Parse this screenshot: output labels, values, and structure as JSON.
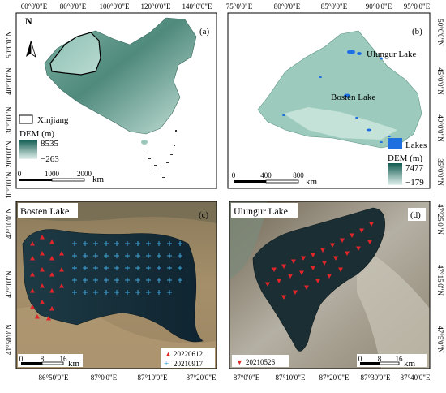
{
  "panels": {
    "a": {
      "label": "(a)",
      "top_ticks": [
        "60°0'0\"E",
        "80°0'0\"E",
        "100°0'0\"E",
        "120°0'0\"E",
        "140°0'0\"E"
      ],
      "left_ticks": [
        "50°0'0\"N",
        "40°0'0\"N",
        "30°0'0\"N",
        "20°0'0\"N",
        "10°0'0\"N"
      ],
      "north": "N",
      "legend_region": "Xinjiang",
      "dem_title": "DEM (m)",
      "dem_max": "8535",
      "dem_min": "−263",
      "scale": [
        "0",
        "1000",
        "2000"
      ],
      "scale_unit": "km"
    },
    "b": {
      "label": "(b)",
      "top_ticks": [
        "75°0'0\"E",
        "80°0'0\"E",
        "85°0'0\"E",
        "90°0'0\"E",
        "95°0'0\"E"
      ],
      "right_ticks": [
        "50°0'0\"N",
        "45°0'0\"N",
        "40°0'0\"N",
        "35°0'0\"N"
      ],
      "lake1": "Ulungur Lake",
      "lake2": "Bosten Lake",
      "lakes_legend": "Lakes",
      "dem_title": "DEM (m)",
      "dem_max": "7477",
      "dem_min": "−179",
      "scale": [
        "0",
        "400",
        "800"
      ],
      "scale_unit": "km"
    },
    "c": {
      "label": "(c)",
      "title": "Bosten Lake",
      "left_ticks": [
        "42°10'0\"N",
        "42°0'0\"N",
        "41°50'0\"N"
      ],
      "bottom_ticks": [
        "86°50'0\"E",
        "87°0'0\"E",
        "87°10'0\"E",
        "87°20'0\"E"
      ],
      "scale": [
        "0",
        "8",
        "16"
      ],
      "scale_unit": "km",
      "legend": [
        {
          "symbol": "▲",
          "color": "#e0262b",
          "label": "20220612"
        },
        {
          "symbol": "+",
          "color": "#3fa3d8",
          "label": "20210917"
        }
      ]
    },
    "d": {
      "label": "(d)",
      "title": "Ulungur Lake",
      "right_ticks": [
        "47°25'0\"N",
        "47°15'0\"N",
        "47°5'0\"N"
      ],
      "bottom_ticks": [
        "87°0'0\"E",
        "87°10'0\"E",
        "87°20'0\"E",
        "87°30'0\"E",
        "87°40'0\"E"
      ],
      "scale": [
        "0",
        "8",
        "16"
      ],
      "scale_unit": "km",
      "legend": [
        {
          "symbol": "▼",
          "color": "#e0262b",
          "label": "20210526"
        }
      ]
    }
  }
}
